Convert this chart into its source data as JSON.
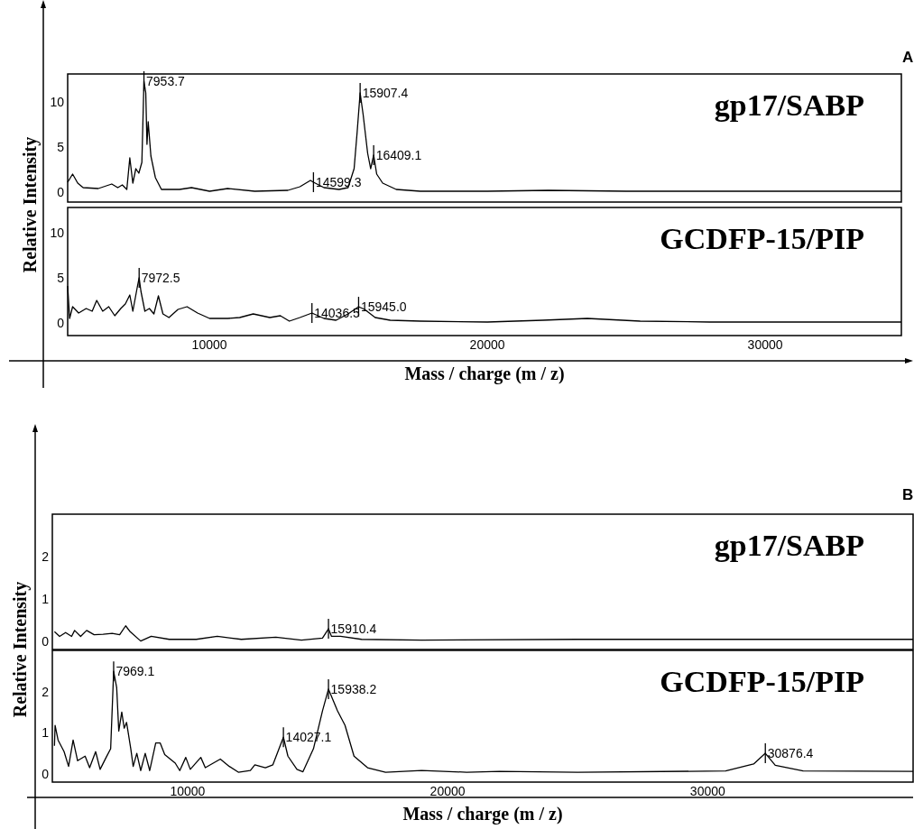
{
  "chart_data": [
    {
      "type": "line",
      "title": "gp17/SABP",
      "ylabel": "Relative Intensity",
      "tick_labels": "y",
      "grid": false,
      "xlim": [
        4900,
        34900
      ],
      "xticks": [
        10000,
        20000,
        30000
      ],
      "ylim": [
        -1.1,
        13.1
      ],
      "yticks": [
        0,
        5,
        10
      ],
      "x": [
        4900,
        5078,
        5262,
        5457,
        6000,
        6486,
        6703,
        6866,
        7028,
        7136,
        7245,
        7353,
        7461,
        7570,
        7645,
        7710,
        7754,
        7797,
        7895,
        8057,
        8274,
        8924,
        9357,
        10007,
        10657,
        11632,
        12824,
        13257,
        13636,
        13744,
        14123,
        14665,
        14990,
        15207,
        15315,
        15424,
        15532,
        15695,
        15803,
        15911,
        16020,
        16236,
        16724,
        17590,
        20000,
        22200,
        25000,
        30000,
        34900
      ],
      "series": [
        {
          "color": "#000000",
          "values": [
            1.1,
            2.0,
            1.0,
            0.5,
            0.4,
            0.9,
            0.5,
            0.8,
            0.3,
            3.8,
            1.0,
            2.6,
            2.1,
            3.3,
            12.3,
            11.0,
            5.3,
            7.8,
            4.0,
            1.6,
            0.3,
            0.3,
            0.5,
            0.1,
            0.4,
            0.1,
            0.2,
            0.6,
            1.3,
            1.1,
            0.5,
            0.3,
            0.5,
            2.6,
            6.6,
            11.0,
            8.6,
            4.3,
            2.6,
            4.1,
            2.0,
            1.0,
            0.3,
            0.1,
            0.1,
            0.2,
            0.1,
            0.1,
            0.1
          ]
        }
      ],
      "annotations": [
        "A",
        {
          "text": "7953.7",
          "x": 7645,
          "y": 12.3
        },
        {
          "text": "15907.4",
          "x": 15424,
          "y": 11.0
        },
        {
          "text": "14599.3",
          "x": 13744,
          "y": 1.1
        },
        {
          "text": "16409.1",
          "x": 15911,
          "y": 4.1
        }
      ]
    },
    {
      "type": "line",
      "title": "GCDFP-15/PIP",
      "xlabel": "Mass / charge (m / z)",
      "grid": false,
      "xlim": [
        4900,
        34900
      ],
      "xticks": [
        10000,
        20000,
        30000
      ],
      "ylim": [
        -1.4,
        12.8
      ],
      "yticks": [
        0,
        5,
        10
      ],
      "x": [
        4900,
        4970,
        5078,
        5295,
        5566,
        5782,
        5945,
        6161,
        6378,
        6595,
        6811,
        6974,
        7136,
        7245,
        7407,
        7472,
        7537,
        7678,
        7840,
        8003,
        8165,
        8328,
        8545,
        8870,
        9195,
        9574,
        10007,
        10657,
        11090,
        11578,
        12174,
        12553,
        12878,
        13257,
        13690,
        14123,
        14557,
        14990,
        15369,
        15586,
        15965,
        16507,
        17590,
        20000,
        22000,
        23600,
        25500,
        28000,
        34900
      ],
      "series": [
        {
          "color": "#000000",
          "values": [
            4.1,
            0.5,
            1.8,
            1.1,
            1.6,
            1.3,
            2.5,
            1.3,
            1.8,
            0.8,
            1.6,
            2.1,
            3.1,
            1.3,
            4.0,
            5.0,
            3.5,
            1.3,
            1.6,
            1.0,
            3.0,
            1.0,
            0.6,
            1.5,
            1.8,
            1.1,
            0.5,
            0.5,
            0.6,
            1.0,
            0.6,
            0.8,
            0.2,
            0.6,
            1.1,
            0.5,
            0.3,
            1.0,
            1.8,
            1.5,
            0.6,
            0.3,
            0.2,
            0.1,
            0.3,
            0.5,
            0.2,
            0.1,
            0.1
          ]
        }
      ],
      "annotations": [
        {
          "text": "7972.5",
          "x": 7472,
          "y": 5.0
        },
        {
          "text": "14036.5",
          "x": 13690,
          "y": 1.1
        },
        {
          "text": "15945.0",
          "x": 15369,
          "y": 1.8
        }
      ]
    },
    {
      "type": "line",
      "title": "gp17/SABP",
      "ylabel": "Relative Intensity",
      "tick_labels": "y",
      "grid": false,
      "xlim": [
        4800,
        37900
      ],
      "xticks": [
        10000,
        20000,
        30000
      ],
      "ylim": [
        -0.2,
        3.0
      ],
      "yticks": [
        0,
        1,
        2
      ],
      "x": [
        4882,
        5079,
        5310,
        5541,
        5657,
        5888,
        6119,
        6407,
        6754,
        7101,
        7389,
        7620,
        7794,
        8198,
        8603,
        9296,
        10335,
        11144,
        12068,
        13397,
        14379,
        15188,
        15419,
        15535,
        15881,
        16690,
        19000,
        25000,
        32000,
        37900
      ],
      "series": [
        {
          "color": "#000000",
          "values": [
            0.22,
            0.11,
            0.2,
            0.11,
            0.25,
            0.11,
            0.25,
            0.15,
            0.16,
            0.18,
            0.15,
            0.36,
            0.22,
            0.0,
            0.11,
            0.04,
            0.04,
            0.11,
            0.04,
            0.09,
            0.02,
            0.07,
            0.29,
            0.11,
            0.11,
            0.04,
            0.02,
            0.04,
            0.04,
            0.04
          ]
        }
      ],
      "annotations": [
        "B",
        {
          "text": "15910.4",
          "x": 15419,
          "y": 0.29
        }
      ]
    },
    {
      "type": "line",
      "title": "GCDFP-15/PIP",
      "xlabel": "Mass / charge (m / z)",
      "grid": false,
      "xlim": [
        4800,
        37900
      ],
      "xticks": [
        10000,
        20000,
        30000
      ],
      "ylim": [
        -0.2,
        3.0
      ],
      "yticks": [
        0,
        1,
        2
      ],
      "x": [
        4882,
        4906,
        5021,
        5252,
        5425,
        5599,
        5772,
        6061,
        6234,
        6465,
        6638,
        6869,
        7043,
        7158,
        7274,
        7355,
        7470,
        7563,
        7655,
        7817,
        7909,
        8048,
        8198,
        8372,
        8545,
        8776,
        8949,
        9122,
        9527,
        9700,
        9931,
        10105,
        10509,
        10682,
        11260,
        11607,
        11953,
        12415,
        12588,
        12993,
        13281,
        13686,
        13859,
        14206,
        14437,
        14841,
        15188,
        15419,
        15766,
        16054,
        16401,
        16921,
        17614,
        19000,
        20733,
        22000,
        25000,
        30693,
        31767,
        32218,
        32600,
        33672,
        37900
      ],
      "series": [
        {
          "color": "#000000",
          "values": [
            0.68,
            1.18,
            0.82,
            0.54,
            0.18,
            0.82,
            0.32,
            0.43,
            0.15,
            0.54,
            0.11,
            0.4,
            0.61,
            2.49,
            2.1,
            1.04,
            1.5,
            1.11,
            1.25,
            0.61,
            0.18,
            0.5,
            0.08,
            0.5,
            0.08,
            0.75,
            0.75,
            0.47,
            0.26,
            0.08,
            0.4,
            0.11,
            0.4,
            0.15,
            0.36,
            0.18,
            0.04,
            0.08,
            0.22,
            0.15,
            0.22,
            0.89,
            0.43,
            0.11,
            0.05,
            0.61,
            1.53,
            2.06,
            1.53,
            1.18,
            0.43,
            0.15,
            0.04,
            0.08,
            0.04,
            0.06,
            0.04,
            0.07,
            0.24,
            0.5,
            0.21,
            0.07,
            0.06
          ]
        }
      ],
      "annotations": [
        {
          "text": "7969.1",
          "x": 7158,
          "y": 2.49
        },
        {
          "text": "15938.2",
          "x": 15419,
          "y": 2.06
        },
        {
          "text": "14027.1",
          "x": 13686,
          "y": 0.89
        },
        {
          "text": "30876.4",
          "x": 32218,
          "y": 0.5
        }
      ]
    }
  ]
}
